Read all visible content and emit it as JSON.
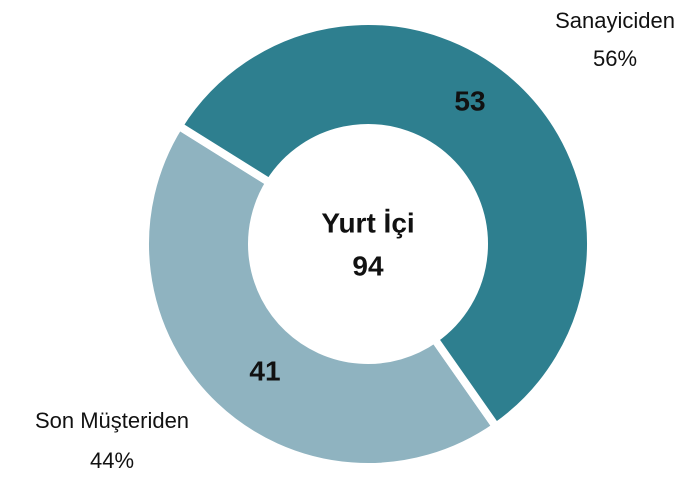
{
  "chart_data": {
    "type": "donut",
    "categories": [
      "Sanayiciden",
      "Son Müşteriden"
    ],
    "values": [
      53,
      41
    ],
    "percent_labels": [
      "56%",
      "44%"
    ],
    "colors": [
      "#2e7f8f",
      "#8fb3c0"
    ],
    "center_label": "Yurt İçi",
    "total": 94
  }
}
